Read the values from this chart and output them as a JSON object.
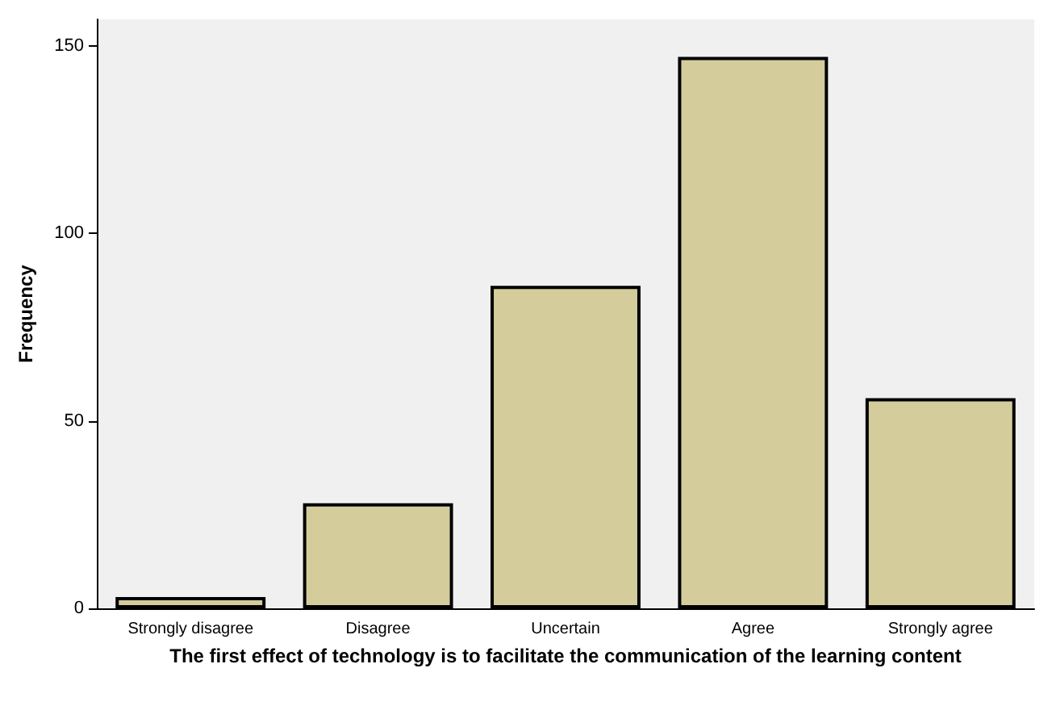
{
  "chart_data": {
    "type": "bar",
    "xlabel": "The first effect of technology is to facilitate the communication of the learning content",
    "ylabel": "Frequency",
    "categories": [
      "Strongly disagree",
      "Disagree",
      "Uncertain",
      "Agree",
      "Strongly agree"
    ],
    "values": [
      3,
      28,
      86,
      147,
      56
    ],
    "color": "#d4cd9b",
    "ylim": [
      0,
      157
    ],
    "yticks": [
      0,
      50,
      100,
      150
    ],
    "grid": false
  }
}
